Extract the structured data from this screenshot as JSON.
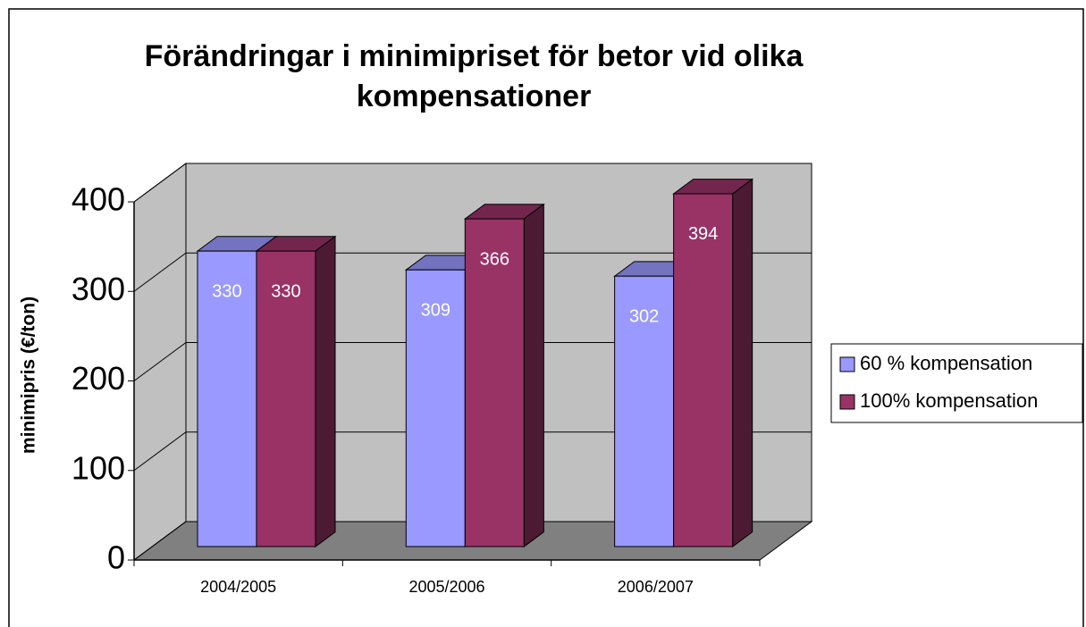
{
  "chart_data": {
    "type": "bar3d",
    "title": [
      "Förändringar i minimipriset för betor vid olika",
      "kompensationer"
    ],
    "ylabel": "minimipris (€/ton)",
    "categories": [
      "2004/2005",
      "2005/2006",
      "2006/2007"
    ],
    "series": [
      {
        "name": "60 % kompensation",
        "color": "#9999ff",
        "values": [
          330,
          309,
          302
        ]
      },
      {
        "name": "100% kompensation",
        "color": "#993366",
        "values": [
          330,
          366,
          394
        ]
      }
    ],
    "ylim": [
      0,
      400
    ],
    "yticks": [
      0,
      100,
      200,
      300,
      400
    ],
    "grid": true,
    "legend": "right"
  }
}
